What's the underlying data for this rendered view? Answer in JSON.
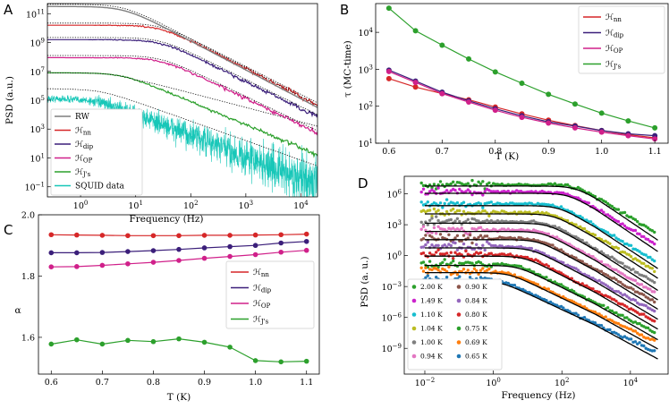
{
  "panels": {
    "A": {
      "letter": "A",
      "xlabel": "Frequency (Hz)",
      "ylabel": "PSD (a.u.)",
      "xticks": [
        "10^0",
        "10^1",
        "10^2",
        "10^3",
        "10^4"
      ],
      "yticks": [
        "10^11",
        "10^9",
        "10^7",
        "10^5",
        "10^3",
        "10^1",
        "10^-1"
      ],
      "legend": [
        "RW",
        "ℋnn",
        "ℋdip",
        "ℋOP",
        "ℋJ's",
        "SQUID data"
      ]
    },
    "B": {
      "letter": "B",
      "xlabel": "T (K)",
      "ylabel": "τ (MC-time)",
      "xticks": [
        "0.6",
        "0.7",
        "0.8",
        "0.9",
        "1.0",
        "1.1"
      ],
      "yticks": [
        "10^1",
        "10^2",
        "10^3",
        "10^4"
      ],
      "legend": [
        "ℋnn",
        "ℋdip",
        "ℋOP",
        "ℋJ's"
      ]
    },
    "C": {
      "letter": "C",
      "xlabel": "T (K)",
      "ylabel": "α",
      "xticks": [
        "0.6",
        "0.7",
        "0.8",
        "0.9",
        "1.0",
        "1.1"
      ],
      "yticks": [
        "1.6",
        "1.8",
        "2.0"
      ],
      "legend": [
        "ℋnn",
        "ℋdip",
        "ℋOP",
        "ℋJ's"
      ]
    },
    "D": {
      "letter": "D",
      "xlabel": "Frequency (Hz)",
      "ylabel": "PSD (a. u.)",
      "xticks": [
        "10^-2",
        "10^0",
        "10^2",
        "10^4"
      ],
      "yticks": [
        "10^6",
        "10^3",
        "10^0",
        "10^-3",
        "10^-6",
        "10^-9"
      ],
      "legend": [
        "2.00 K",
        "1.49 K",
        "1.10 K",
        "1.04 K",
        "1.00 K",
        "0.94 K",
        "0.90 K",
        "0.84 K",
        "0.80 K",
        "0.75 K",
        "0.69 K",
        "0.65 K"
      ]
    }
  },
  "colors": {
    "RW": "#7f7f7f",
    "nn": "#d62728",
    "dip": "#3b1f7a",
    "OP": "#d0208a",
    "Js": "#2ca02c",
    "squid": "#17c7b8",
    "D": [
      "#2ca02c",
      "#cc22cc",
      "#17becf",
      "#bcbd22",
      "#7f7f7f",
      "#e377c2",
      "#8c564b",
      "#9467bd",
      "#d62728",
      "#2ca02c",
      "#ff7f0e",
      "#1f77b4"
    ]
  },
  "chart_data": [
    {
      "panel": "A",
      "type": "line",
      "title": "",
      "xlabel": "Frequency (Hz)",
      "ylabel": "PSD (a.u.)",
      "xscale": "log",
      "yscale": "log",
      "xlim": [
        0.25,
        20000
      ],
      "ylim_log10": [
        -1.7,
        11.7
      ],
      "series": [
        {
          "name": "RW",
          "plateau_log10": 11.5,
          "knee_log10_f": 0.8,
          "slope": 2.0
        },
        {
          "name": "ℋnn",
          "plateau_log10": 10.2,
          "knee_log10_f": 1.45,
          "slope": 1.94
        },
        {
          "name": "ℋdip",
          "plateau_log10": 9.2,
          "knee_log10_f": 1.45,
          "slope": 1.88
        },
        {
          "name": "ℋOP",
          "plateau_log10": 7.95,
          "knee_log10_f": 1.45,
          "slope": 1.83
        },
        {
          "name": "ℋJ's",
          "plateau_log10": 6.9,
          "knee_log10_f": 0.75,
          "slope": 1.6
        },
        {
          "name": "SQUID data",
          "plateau_log10": 5.1,
          "knee_log10_f": 0.3,
          "slope": 1.5
        }
      ]
    },
    {
      "panel": "B",
      "type": "line",
      "xlabel": "T (K)",
      "ylabel": "τ (MC-time)",
      "yscale": "log",
      "xlim": [
        0.575,
        1.125
      ],
      "ylim": [
        10,
        60000
      ],
      "x": [
        0.6,
        0.65,
        0.7,
        0.75,
        0.8,
        0.85,
        0.9,
        0.95,
        1.0,
        1.05,
        1.1
      ],
      "series": [
        {
          "name": "ℋnn",
          "values": [
            560,
            330,
            220,
            150,
            95,
            62,
            42,
            30,
            22,
            17,
            14
          ]
        },
        {
          "name": "ℋdip",
          "values": [
            950,
            480,
            240,
            140,
            85,
            55,
            38,
            29,
            22,
            18,
            16
          ]
        },
        {
          "name": "ℋOP",
          "values": [
            870,
            440,
            220,
            130,
            78,
            50,
            35,
            26,
            20,
            16,
            13
          ]
        },
        {
          "name": "ℋJ's",
          "values": [
            45000,
            11000,
            4500,
            1900,
            850,
            420,
            210,
            115,
            65,
            40,
            26
          ]
        }
      ]
    },
    {
      "panel": "C",
      "type": "line",
      "xlabel": "T (K)",
      "ylabel": "α",
      "xlim": [
        0.575,
        1.125
      ],
      "ylim": [
        1.48,
        2.0
      ],
      "x": [
        0.6,
        0.65,
        0.7,
        0.75,
        0.8,
        0.85,
        0.9,
        0.95,
        1.0,
        1.05,
        1.1
      ],
      "series": [
        {
          "name": "ℋnn",
          "values": [
            1.935,
            1.934,
            1.933,
            1.932,
            1.932,
            1.932,
            1.933,
            1.933,
            1.934,
            1.935,
            1.937
          ]
        },
        {
          "name": "ℋdip",
          "values": [
            1.876,
            1.876,
            1.877,
            1.88,
            1.883,
            1.887,
            1.892,
            1.896,
            1.9,
            1.908,
            1.913
          ]
        },
        {
          "name": "ℋOP",
          "values": [
            1.83,
            1.831,
            1.835,
            1.84,
            1.845,
            1.851,
            1.858,
            1.864,
            1.87,
            1.878,
            1.884
          ]
        },
        {
          "name": "ℋJ's",
          "values": [
            1.578,
            1.592,
            1.578,
            1.59,
            1.586,
            1.595,
            1.584,
            1.568,
            1.524,
            1.52,
            1.522
          ]
        }
      ]
    },
    {
      "panel": "D",
      "type": "scatter",
      "xlabel": "Frequency (Hz)",
      "ylabel": "PSD (a. u.)",
      "xscale": "log",
      "yscale": "log",
      "xlim_log10": [
        -2.6,
        5.1
      ],
      "ylim_log10": [
        -11.5,
        7.7
      ],
      "series": [
        {
          "name": "2.00 K",
          "plateau_log10": 6.9,
          "knee_log10_f": 2.4,
          "slope": 2.0
        },
        {
          "name": "1.49 K",
          "plateau_log10": 6.2,
          "knee_log10_f": 2.2,
          "slope": 2.0
        },
        {
          "name": "1.10 K",
          "plateau_log10": 5.0,
          "knee_log10_f": 1.9,
          "slope": 1.95
        },
        {
          "name": "1.04 K",
          "plateau_log10": 4.2,
          "knee_log10_f": 1.75,
          "slope": 1.9
        },
        {
          "name": "1.00 K",
          "plateau_log10": 3.3,
          "knee_log10_f": 1.6,
          "slope": 1.9
        },
        {
          "name": "0.94 K",
          "plateau_log10": 2.5,
          "knee_log10_f": 1.45,
          "slope": 1.85
        },
        {
          "name": "0.90 K",
          "plateau_log10": 1.7,
          "knee_log10_f": 1.3,
          "slope": 1.8
        },
        {
          "name": "0.84 K",
          "plateau_log10": 0.9,
          "knee_log10_f": 1.1,
          "slope": 1.75
        },
        {
          "name": "0.80 K",
          "plateau_log10": 0.1,
          "knee_log10_f": 0.9,
          "slope": 1.7
        },
        {
          "name": "0.75 K",
          "plateau_log10": -0.8,
          "knee_log10_f": 0.7,
          "slope": 1.65
        },
        {
          "name": "0.69 K",
          "plateau_log10": -1.5,
          "knee_log10_f": 0.45,
          "slope": 1.6
        },
        {
          "name": "0.65 K",
          "plateau_log10": -2.3,
          "knee_log10_f": 0.2,
          "slope": 1.55
        }
      ]
    }
  ]
}
